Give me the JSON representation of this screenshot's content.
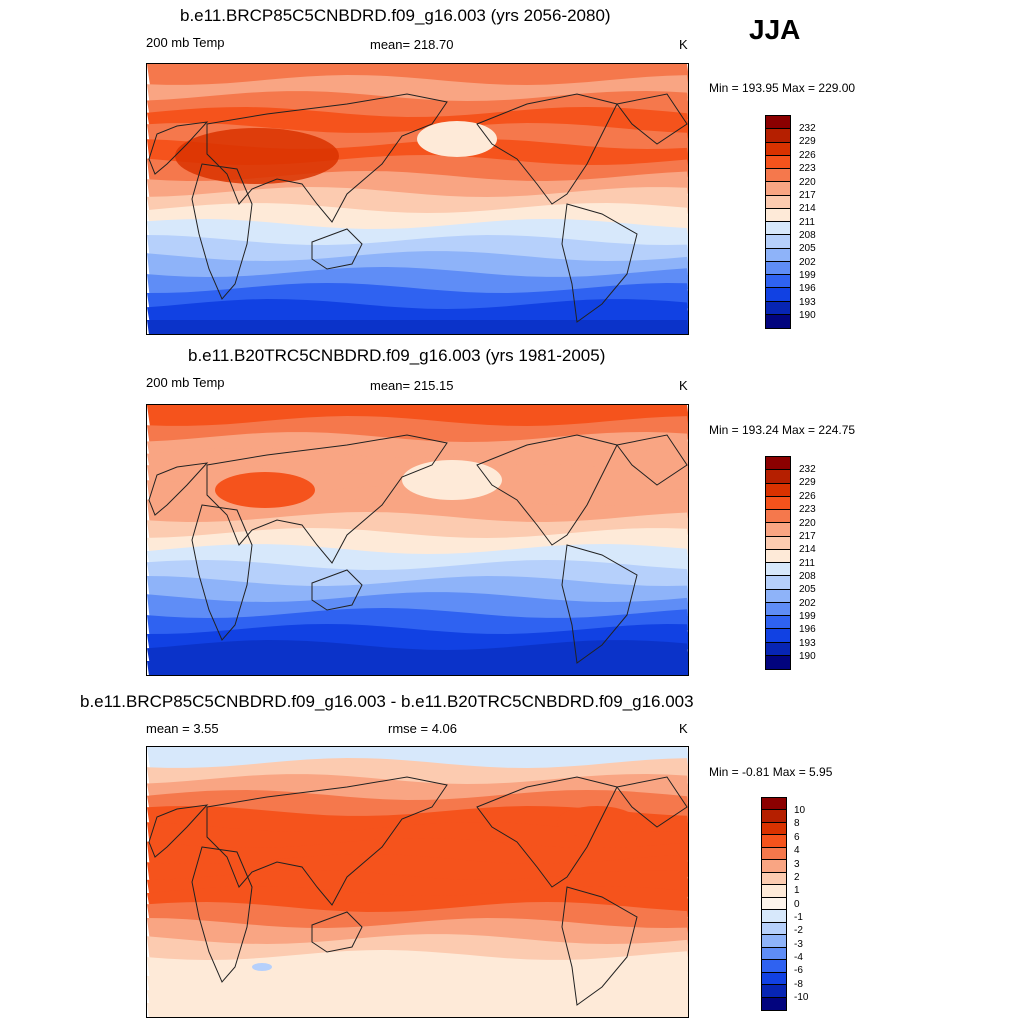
{
  "season": "JJA",
  "colors": {
    "abs_scale": [
      "#8b0000",
      "#b51f00",
      "#d93200",
      "#f5531c",
      "#f5784c",
      "#f9a583",
      "#fccbb0",
      "#feead8",
      "#d7e8fb",
      "#b6d0fb",
      "#8eb3f9",
      "#5f8df6",
      "#2f62f1",
      "#1141e3",
      "#0725b4",
      "#02047e"
    ],
    "diff_scale": [
      "#8b0000",
      "#b51f00",
      "#d93200",
      "#f5531c",
      "#f5784c",
      "#f9a583",
      "#fccbb0",
      "#feead8",
      "#fdf4ec",
      "#d7e8fb",
      "#b6d0fb",
      "#8eb3f9",
      "#5f8df6",
      "#2f62f1",
      "#1141e3",
      "#0725b4",
      "#02047e"
    ]
  },
  "panels": [
    {
      "title": "b.e11.BRCP85C5CNBDRD.f09_g16.003 (yrs 2056-2080)",
      "left_label": "200 mb Temp",
      "mean_label": "mean= 218.70",
      "units": "K",
      "minmax": "Min = 193.95 Max = 229.00",
      "colorbar_labels": [
        "232",
        "229",
        "226",
        "223",
        "220",
        "217",
        "214",
        "211",
        "208",
        "205",
        "202",
        "199",
        "196",
        "193",
        "190"
      ],
      "bands": [
        "#f5784c",
        "#f9a583",
        "#f5784c",
        "#f5531c",
        "#f5784c",
        "#f5531c",
        "#f5784c",
        "#f9a583",
        "#fccbb0",
        "#feead8",
        "#d7e8fb",
        "#b6d0fb",
        "#8eb3f9",
        "#5f8df6",
        "#2f62f1",
        "#1141e3",
        "#0b33c9"
      ]
    },
    {
      "title": "b.e11.B20TRC5CNBDRD.f09_g16.003 (yrs 1981-2005)",
      "left_label": "200 mb Temp",
      "mean_label": "mean= 215.15",
      "units": "K",
      "minmax": "Min = 193.24 Max = 224.75",
      "colorbar_labels": [
        "232",
        "229",
        "226",
        "223",
        "220",
        "217",
        "214",
        "211",
        "208",
        "205",
        "202",
        "199",
        "196",
        "193",
        "190"
      ],
      "bands": [
        "#f5531c",
        "#f5784c",
        "#f9a583",
        "#f9a583",
        "#f9a583",
        "#f9a583",
        "#f9a583",
        "#fccbb0",
        "#feead8",
        "#d7e8fb",
        "#b6d0fb",
        "#8eb3f9",
        "#5f8df6",
        "#2f62f1",
        "#1141e3",
        "#0b33c9",
        "#0b33c9"
      ]
    },
    {
      "title": "b.e11.BRCP85C5CNBDRD.f09_g16.003 - b.e11.B20TRC5CNBDRD.f09_g16.003",
      "left_label": "mean =   3.55",
      "mean_label": "rmse =   4.06",
      "units": "K",
      "minmax": "Min =  -0.81 Max =   5.95",
      "colorbar_labels": [
        "10",
        "8",
        "6",
        "4",
        "3",
        "2",
        "1",
        "0",
        "-1",
        "-2",
        "-3",
        "-4",
        "-6",
        "-8",
        "-10"
      ],
      "bands": [
        "#d7e8fb",
        "#fccbb0",
        "#f9a583",
        "#f5784c",
        "#f5531c",
        "#f5531c",
        "#f5531c",
        "#f5531c",
        "#f5531c",
        "#f5531c",
        "#f5784c",
        "#f9a583",
        "#fccbb0",
        "#feead8",
        "#feead8",
        "#feead8",
        "#feead8"
      ]
    }
  ]
}
